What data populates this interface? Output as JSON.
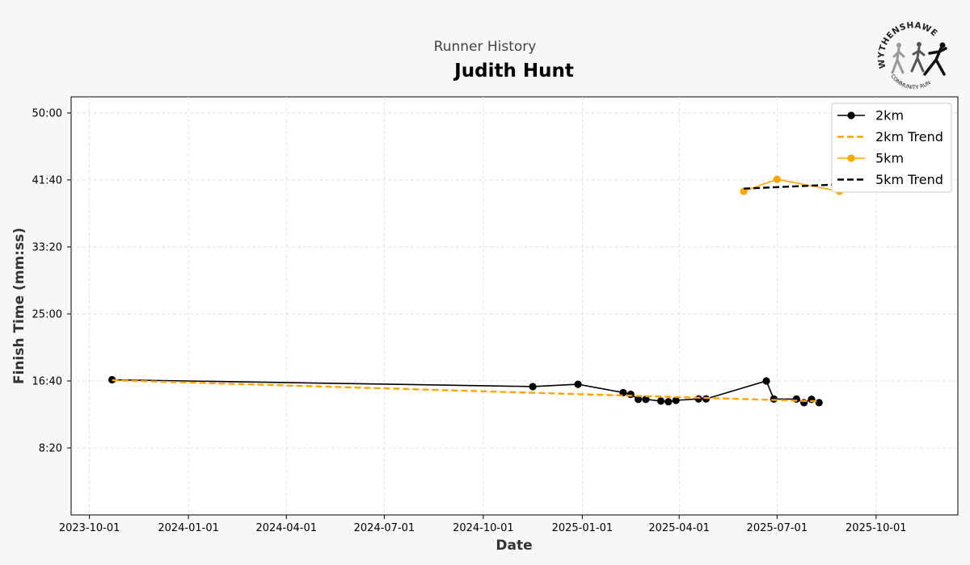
{
  "header": {
    "subtitle": "Runner History",
    "title": "Judith Hunt"
  },
  "logo": {
    "top_text": "WYTHENSHAWE",
    "bottom_text": "COMMUNITY RUN"
  },
  "colors": {
    "series_2km": "#000000",
    "trend_2km": "#FFA500",
    "series_5km": "#FFA500",
    "trend_5km": "#000000",
    "grid": "#dddddd",
    "background": "#f7f7f7",
    "plot_background": "#ffffff"
  },
  "chart_data": {
    "type": "line",
    "xlabel": "Date",
    "ylabel": "Finish Time (mm:ss)",
    "x_ticks": [
      "2023-10-01",
      "2024-01-01",
      "2024-04-01",
      "2024-07-01",
      "2024-10-01",
      "2025-01-01",
      "2025-04-01",
      "2025-07-01",
      "2025-10-01"
    ],
    "y_ticks": [
      "8:20",
      "16:40",
      "25:00",
      "33:20",
      "41:40",
      "50:00"
    ],
    "y_unit": "seconds",
    "xlim": [
      "2023-09-14",
      "2025-12-16"
    ],
    "ylim": [
      0,
      3120
    ],
    "grid": true,
    "legend_position": "top-right",
    "series": [
      {
        "name": "2km",
        "style": "line-marker",
        "color": "#000000",
        "points": [
          {
            "x": "2023-10-22",
            "y": 1009
          },
          {
            "x": "2024-11-16",
            "y": 958
          },
          {
            "x": "2024-12-28",
            "y": 975
          },
          {
            "x": "2025-02-08",
            "y": 913
          },
          {
            "x": "2025-02-15",
            "y": 900
          },
          {
            "x": "2025-02-22",
            "y": 863
          },
          {
            "x": "2025-03-01",
            "y": 863
          },
          {
            "x": "2025-03-15",
            "y": 850
          },
          {
            "x": "2025-03-22",
            "y": 845
          },
          {
            "x": "2025-03-29",
            "y": 855
          },
          {
            "x": "2025-04-19",
            "y": 866
          },
          {
            "x": "2025-04-26",
            "y": 866
          },
          {
            "x": "2025-06-21",
            "y": 1000
          },
          {
            "x": "2025-06-28",
            "y": 865
          },
          {
            "x": "2025-07-19",
            "y": 865
          },
          {
            "x": "2025-07-26",
            "y": 838
          },
          {
            "x": "2025-08-02",
            "y": 863
          },
          {
            "x": "2025-08-09",
            "y": 838
          }
        ]
      },
      {
        "name": "2km Trend",
        "style": "dashed",
        "color": "#FFA500",
        "points": [
          {
            "x": "2023-10-22",
            "y": 1005
          },
          {
            "x": "2025-08-09",
            "y": 848
          }
        ]
      },
      {
        "name": "5km",
        "style": "line-marker",
        "color": "#FFA500",
        "points": [
          {
            "x": "2025-05-31",
            "y": 2415
          },
          {
            "x": "2025-07-01",
            "y": 2505
          },
          {
            "x": "2025-08-28",
            "y": 2415
          },
          {
            "x": "2025-11-01",
            "y": 2510
          }
        ]
      },
      {
        "name": "5km Trend",
        "style": "dashed",
        "color": "#000000",
        "points": [
          {
            "x": "2025-05-31",
            "y": 2435
          },
          {
            "x": "2025-11-01",
            "y": 2490
          }
        ]
      }
    ]
  }
}
